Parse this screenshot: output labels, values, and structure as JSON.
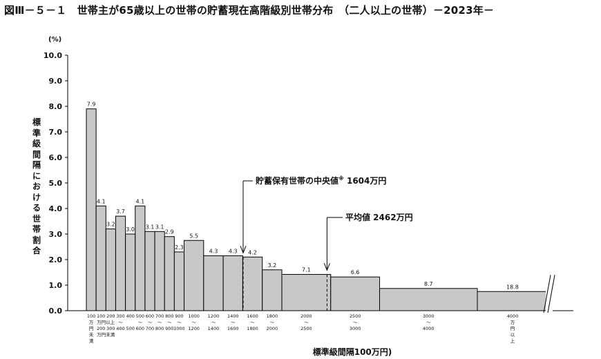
{
  "title": "図Ⅲ－５－１　世帯主が65歳以上の世帯の貯蓄現在高階級別世帯分布　（二人以上の世帯）－2023年－",
  "chart_data": {
    "type": "bar",
    "unit": "(%)",
    "ylabel": "標準級間隔における世帯割合",
    "xlabel": "標準級間隔100万円)",
    "ylim": [
      0,
      10
    ],
    "yticks": [
      "0.0",
      "1.0",
      "2.0",
      "3.0",
      "4.0",
      "5.0",
      "6.0",
      "7.0",
      "8.0",
      "9.0",
      "10.0"
    ],
    "bars": [
      {
        "x0": 0,
        "x1": 100,
        "height": 7.9,
        "label": "7.9"
      },
      {
        "x0": 100,
        "x1": 200,
        "height": 4.1,
        "label": "4.1"
      },
      {
        "x0": 200,
        "x1": 300,
        "height": 3.2,
        "label": "3.2"
      },
      {
        "x0": 300,
        "x1": 400,
        "height": 3.7,
        "label": "3.7"
      },
      {
        "x0": 400,
        "x1": 500,
        "height": 3.0,
        "label": "3.0"
      },
      {
        "x0": 500,
        "x1": 600,
        "height": 4.1,
        "label": "4.1"
      },
      {
        "x0": 600,
        "x1": 700,
        "height": 3.1,
        "label": "3.1"
      },
      {
        "x0": 700,
        "x1": 800,
        "height": 3.1,
        "label": "3.1"
      },
      {
        "x0": 800,
        "x1": 900,
        "height": 2.9,
        "label": "2.9"
      },
      {
        "x0": 900,
        "x1": 1000,
        "height": 2.3,
        "label": "2.3"
      },
      {
        "x0": 1000,
        "x1": 1200,
        "height": 2.75,
        "label": "5.5"
      },
      {
        "x0": 1200,
        "x1": 1400,
        "height": 2.15,
        "label": "4.3"
      },
      {
        "x0": 1400,
        "x1": 1600,
        "height": 2.15,
        "label": "4.3"
      },
      {
        "x0": 1600,
        "x1": 1800,
        "height": 2.1,
        "label": "4.2"
      },
      {
        "x0": 1800,
        "x1": 2000,
        "height": 1.6,
        "label": "3.2"
      },
      {
        "x0": 2000,
        "x1": 2500,
        "height": 1.42,
        "label": "7.1"
      },
      {
        "x0": 2500,
        "x1": 3000,
        "height": 1.32,
        "label": "6.6"
      },
      {
        "x0": 3000,
        "x1": 4000,
        "height": 0.87,
        "label": "8.7"
      },
      {
        "x0": 4000,
        "x1": 4720,
        "height": 0.75,
        "label": "18.8"
      }
    ],
    "x_tick_labels": [
      {
        "at": 50,
        "lines": [
          "100",
          "万",
          "円",
          "未",
          "満"
        ]
      },
      {
        "at": 150,
        "lines": [
          "100",
          "",
          "200"
        ]
      },
      {
        "at": 200,
        "lines": [
          "",
          "万円以上",
          "",
          "万円未満"
        ]
      },
      {
        "at": 250,
        "lines": [
          "200",
          "",
          "300"
        ]
      },
      {
        "at": 350,
        "lines": [
          "300",
          "〜",
          "400"
        ]
      },
      {
        "at": 450,
        "lines": [
          "400",
          "",
          "500"
        ]
      },
      {
        "at": 550,
        "lines": [
          "500",
          "〜",
          "600"
        ]
      },
      {
        "at": 650,
        "lines": [
          "600",
          "〜",
          "700"
        ]
      },
      {
        "at": 750,
        "lines": [
          "700",
          "〜",
          "800"
        ]
      },
      {
        "at": 850,
        "lines": [
          "800",
          "〜",
          "900"
        ]
      },
      {
        "at": 950,
        "lines": [
          "900",
          "〜",
          "1000"
        ]
      },
      {
        "at": 1100,
        "lines": [
          "1000",
          "〜",
          "1200"
        ]
      },
      {
        "at": 1300,
        "lines": [
          "1200",
          "〜",
          "1400"
        ]
      },
      {
        "at": 1500,
        "lines": [
          "1400",
          "〜",
          "1600"
        ]
      },
      {
        "at": 1700,
        "lines": [
          "1600",
          "〜",
          "1800"
        ]
      },
      {
        "at": 1900,
        "lines": [
          "1800",
          "〜",
          "2000"
        ]
      },
      {
        "at": 2250,
        "lines": [
          "2000",
          "〜",
          "2500"
        ]
      },
      {
        "at": 2750,
        "lines": [
          "2500",
          "〜",
          "3000"
        ]
      },
      {
        "at": 3500,
        "lines": [
          "3000",
          "〜",
          "4000"
        ]
      },
      {
        "at": 4360,
        "lines": [
          "4000",
          "万",
          "円",
          "以",
          "上"
        ]
      }
    ],
    "median": {
      "value": 1604,
      "text": "貯蓄保有世帯の中央値",
      "mark": "※",
      "amount": " 1604万円"
    },
    "mean": {
      "value": 2462,
      "text": "平均値 2462万円"
    }
  }
}
